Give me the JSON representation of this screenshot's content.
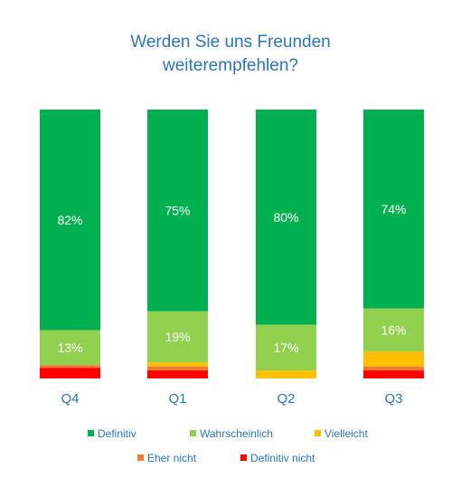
{
  "chart_data": {
    "type": "bar",
    "stacked": true,
    "title_lines": [
      "Werden Sie uns Freunden",
      "weiterempfehlen?"
    ],
    "categories": [
      "Q4",
      "Q1",
      "Q2",
      "Q3"
    ],
    "series": [
      {
        "name": "Definitiv nicht",
        "color": "#ff0000",
        "values": [
          4,
          3,
          0,
          3
        ]
      },
      {
        "name": "Eher nicht",
        "color": "#ed7d31",
        "values": [
          1,
          1.5,
          0,
          1.5
        ]
      },
      {
        "name": "Vielleicht",
        "color": "#ffc000",
        "values": [
          0,
          1.5,
          3,
          5.5
        ]
      },
      {
        "name": "Wahrscheinlich",
        "color": "#92d050",
        "values": [
          13,
          19,
          17,
          16
        ]
      },
      {
        "name": "Definitiv",
        "color": "#00b050",
        "values": [
          82,
          75,
          80,
          74
        ]
      }
    ],
    "data_labels": {
      "Definitiv": [
        "82%",
        "75%",
        "80%",
        "74%"
      ],
      "Wahrscheinlich": [
        "13%",
        "19%",
        "17%",
        "16%"
      ]
    },
    "ylim": [
      0,
      100
    ],
    "grid": false,
    "legend": {
      "position": "bottom",
      "order": [
        "Definitiv",
        "Wahrscheinlich",
        "Vielleicht",
        "Eher nicht",
        "Definitiv nicht"
      ]
    }
  }
}
